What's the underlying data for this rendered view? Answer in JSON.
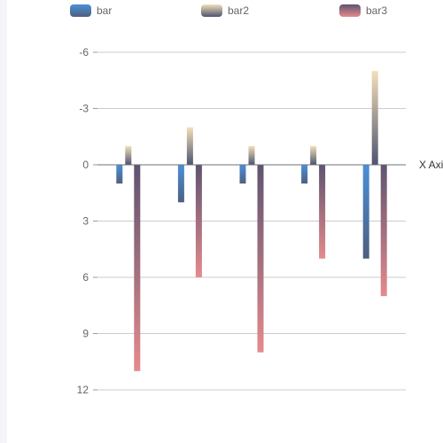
{
  "chart_data": {
    "type": "bar",
    "categories": [
      "",
      "",
      "",
      "",
      ""
    ],
    "xlabel": "X Axis",
    "ylabel": "",
    "ylim": [
      -6,
      12
    ],
    "y_inverse": true,
    "y_ticks": [
      -6,
      -3,
      0,
      3,
      6,
      9,
      12
    ],
    "y_tick_labels": [
      "-6",
      "-3",
      "0",
      "3",
      "6",
      "9",
      "12"
    ],
    "grid": true,
    "legend_position": "top",
    "series": [
      {
        "name": "bar",
        "values": [
          1,
          2,
          1,
          1,
          5
        ],
        "gradient": [
          "#4a90d9",
          "#4e5f7e"
        ]
      },
      {
        "name": "bar2",
        "values": [
          -1,
          -2,
          -1,
          -1,
          -5
        ],
        "gradient": [
          "#f3dfb8",
          "#4e5470"
        ]
      },
      {
        "name": "bar3",
        "values": [
          11,
          6,
          10,
          5,
          7
        ],
        "gradient": [
          "#5e5470",
          "#e58a8c"
        ]
      }
    ]
  }
}
